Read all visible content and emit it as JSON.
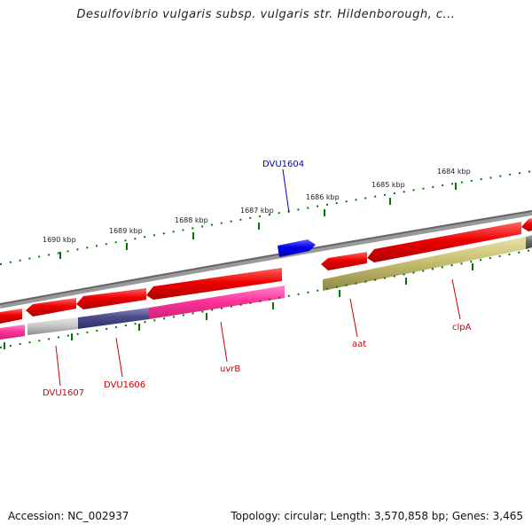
{
  "title": "Desulfovibrio vulgaris subsp. vulgaris str. Hildenborough, c...",
  "footer": {
    "accession": "Accession: NC_002937",
    "summary": "Topology: circular; Length: 3,570,858 bp; Genes: 3,465"
  },
  "ticks": {
    "upper": [
      "1690 kbp",
      "1689 kbp",
      "1688 kbp",
      "1687 kbp",
      "1686 kbp",
      "1685 kbp",
      "1684 kbp"
    ]
  },
  "genes": {
    "labels": [
      "DVU1604",
      "DVU1607",
      "DVU1606",
      "uvrB",
      "aat",
      "clpA"
    ]
  },
  "colors": {
    "forward_gene": "#0000ee",
    "reverse_gene": "#ee0000",
    "uvrB": "#ff3399",
    "DVU1606": "#4a4a8a",
    "clpA": "#c8c070",
    "backbone": "#888888",
    "tick": "#007700",
    "label_red": "#cc0000",
    "label_blue": "#0000cc"
  }
}
